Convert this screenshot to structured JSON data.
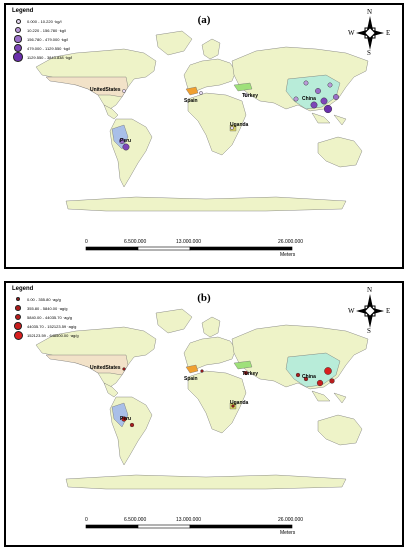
{
  "panels": [
    {
      "id": "a",
      "label": "(a)",
      "legend_title": "Legend",
      "legend_items": [
        {
          "label": "0.000 - 10.220 ·kg/l",
          "color": "#e6d9f2",
          "size": 2
        },
        {
          "label": "10.220 - 156.780 ·kg/l",
          "color": "#b99ad8",
          "size": 3.2
        },
        {
          "label": "156.780 - 479.000 ·kg/l",
          "color": "#9a6fc8",
          "size": 4.2
        },
        {
          "label": "479.000 - 1129.550 ·kg/l",
          "color": "#7d46b8",
          "size": 5.2
        },
        {
          "label": "1129.550 - 3843.838 ·kg/l",
          "color": "#6a2fab",
          "size": 6.5
        }
      ],
      "countries": {
        "usa": "UnitedStates",
        "spain": "Spain",
        "turkey": "Turkey",
        "china": "China",
        "uganda": "Uganda",
        "peru": "Peru"
      },
      "compass": {
        "n": "N",
        "s": "S",
        "e": "E",
        "w": "W"
      },
      "scale": {
        "ticks": [
          "0",
          "6.500.000",
          "13.000.000",
          "26.000.000"
        ],
        "unit": "Meters"
      }
    },
    {
      "id": "b",
      "label": "(b)",
      "legend_title": "Legend",
      "legend_items": [
        {
          "label": "0.00 - 355.80 ·ag/g",
          "color": "#9b1b1b",
          "size": 1.6
        },
        {
          "label": "355.80 - 5840.00 ·ag/g",
          "color": "#a81c1c",
          "size": 2.6
        },
        {
          "label": "5840.00 - 44035.70 ·ag/g",
          "color": "#b81d1d",
          "size": 3.6
        },
        {
          "label": "44035.70 - 152123.59 ·ag/g",
          "color": "#c81e1e",
          "size": 4.6
        },
        {
          "label": "152123.59 - 648500.00 ·ag/g",
          "color": "#d81f1f",
          "size": 6
        }
      ],
      "countries": {
        "usa": "UnitedStates",
        "spain": "Spain",
        "turkey": "Turkey",
        "china": "China",
        "uganda": "Uganda",
        "peru": "Peru"
      },
      "compass": {
        "n": "N",
        "s": "S",
        "e": "E",
        "w": "W"
      },
      "scale": {
        "ticks": [
          "0",
          "6.500.000",
          "13.000.000",
          "26.000.000"
        ],
        "unit": "Meters"
      }
    }
  ],
  "colors": {
    "land": "#eef3c8",
    "coast": "#6f6f6f",
    "usa": "#f2e2c8",
    "spain": "#f0a030",
    "turkey": "#9fe07a",
    "china": "#b8ecd9",
    "peru": "#a9bfe8",
    "uganda": "#d8d060"
  }
}
